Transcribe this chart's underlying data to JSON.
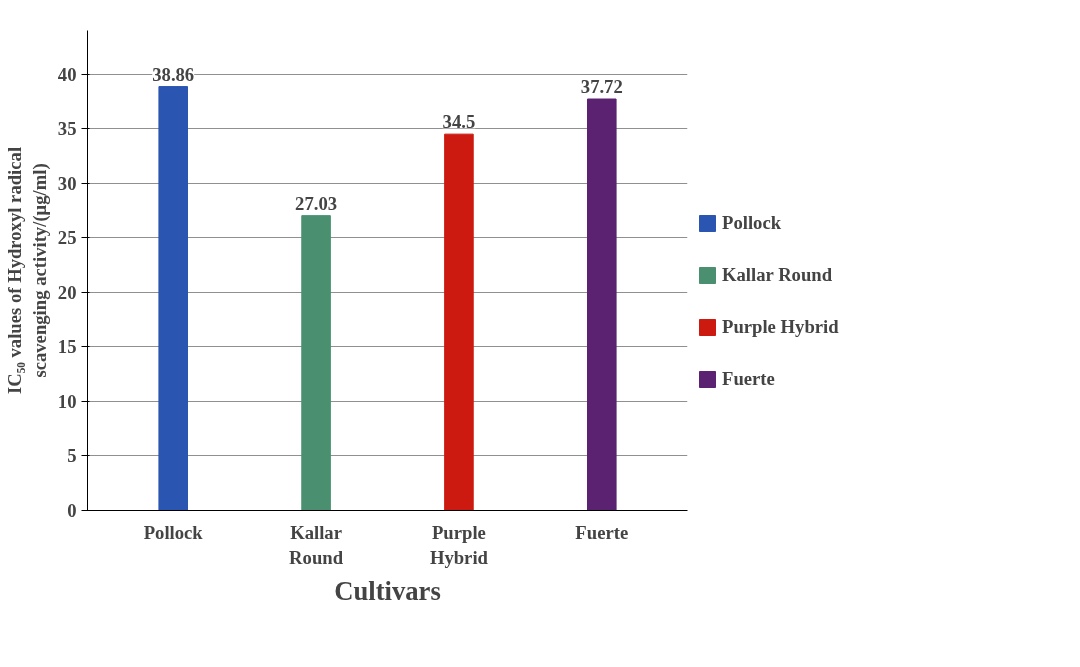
{
  "chart_data": {
    "type": "bar",
    "xlabel": "Cultivars",
    "ylabel": "IC₅₀ values of Hydroxyl radical scavenging activity/(μg/ml)",
    "categories": [
      "Pollock",
      "Kallar Round",
      "Purple Hybrid",
      "Fuerte"
    ],
    "series": [
      {
        "name": "Pollock",
        "color": "#2a55b0",
        "values": [
          38.86,
          null,
          null,
          null
        ]
      },
      {
        "name": "Kallar Round",
        "color": "#4a9070",
        "values": [
          null,
          27.03,
          null,
          null
        ]
      },
      {
        "name": "Purple Hybrid",
        "color": "#cc1a10",
        "values": [
          null,
          null,
          34.5,
          null
        ]
      },
      {
        "name": "Fuerte",
        "color": "#5a2270",
        "values": [
          null,
          null,
          null,
          37.72
        ]
      }
    ],
    "ylim": [
      0,
      44
    ],
    "yticks": [
      0,
      5,
      10,
      15,
      20,
      25,
      30,
      35,
      40
    ],
    "grid": "y",
    "legend": "right",
    "data_labels": true
  }
}
